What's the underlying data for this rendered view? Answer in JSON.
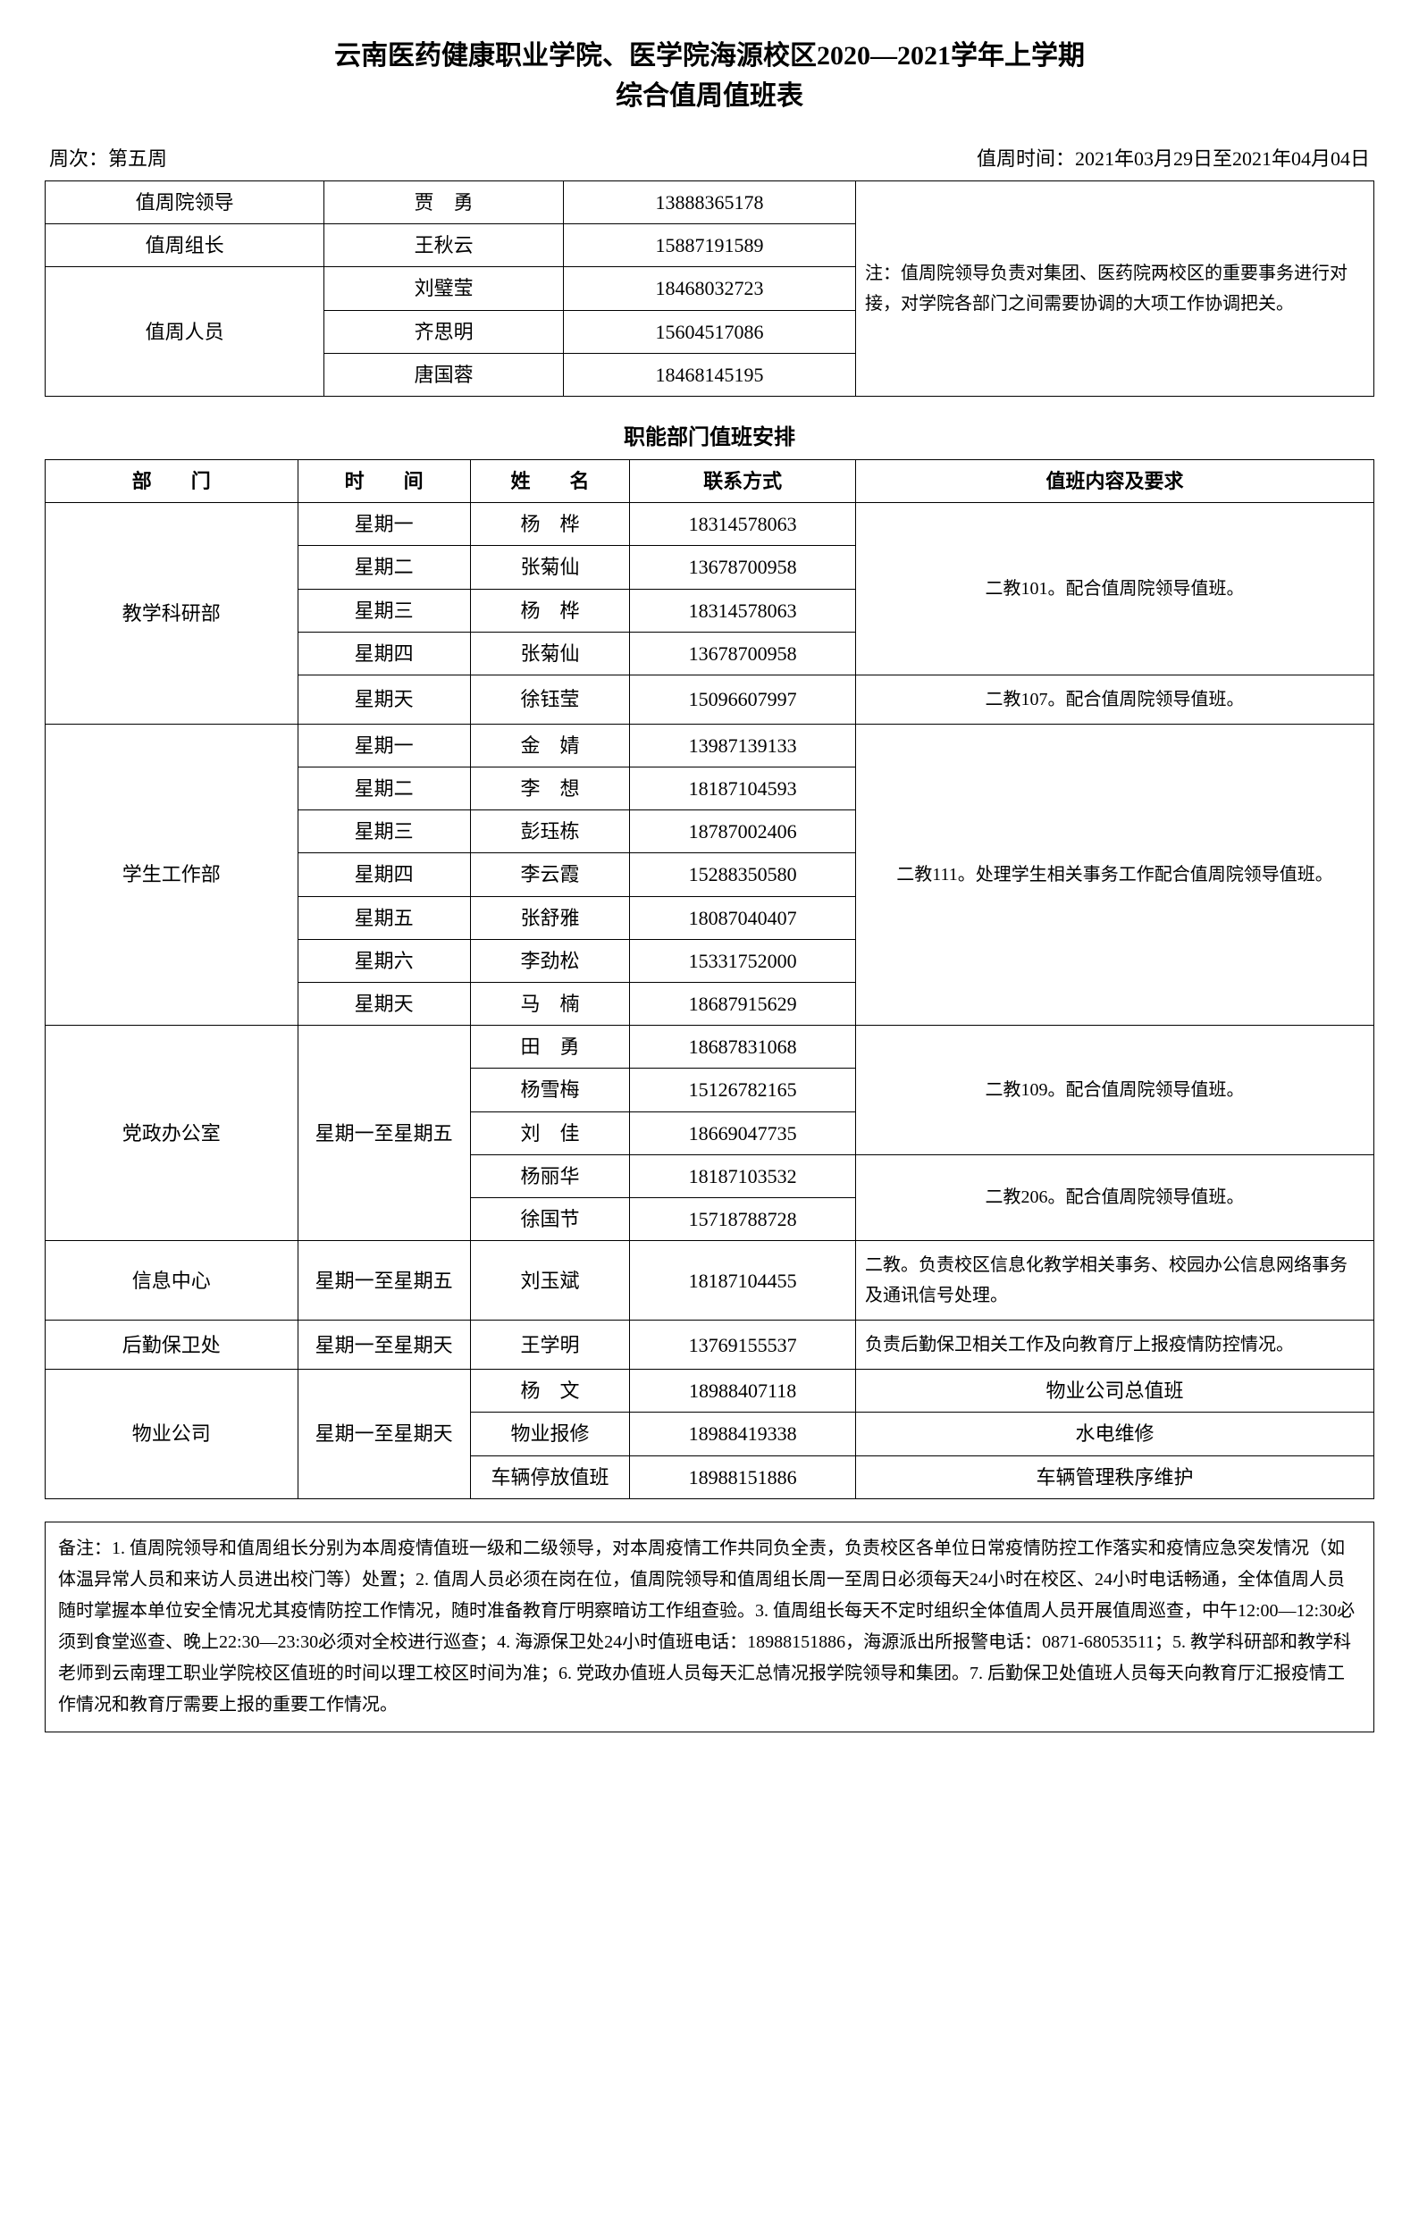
{
  "title_line1": "云南医药健康职业学院、医学院海源校区2020—2021学年上学期",
  "title_line2": "综合值周值班表",
  "week_label": "周次：第五周",
  "period_label": "值周时间：2021年03月29日至2021年04月04日",
  "top_table": {
    "note": "注：值周院领导负责对集团、医药院两校区的重要事务进行对接，对学院各部门之间需要协调的大项工作协调把关。",
    "rows": [
      {
        "role": "值周院领导",
        "name": "贾　勇",
        "phone": "13888365178"
      },
      {
        "role": "值周组长",
        "name": "王秋云",
        "phone": "15887191589"
      },
      {
        "role": "值周人员",
        "name": "刘璧莹",
        "phone": "18468032723"
      },
      {
        "role": "",
        "name": "齐思明",
        "phone": "15604517086"
      },
      {
        "role": "",
        "name": "唐国蓉",
        "phone": "18468145195"
      }
    ]
  },
  "section2_title": "职能部门值班安排",
  "headers": {
    "dept": "部　　门",
    "time": "时　　间",
    "name": "姓　　名",
    "contact": "联系方式",
    "desc": "值班内容及要求"
  },
  "depts": {
    "jxky": {
      "name": "教学科研部",
      "rows": [
        {
          "time": "星期一",
          "name": "杨　桦",
          "phone": "18314578063"
        },
        {
          "time": "星期二",
          "name": "张菊仙",
          "phone": "13678700958"
        },
        {
          "time": "星期三",
          "name": "杨　桦",
          "phone": "18314578063"
        },
        {
          "time": "星期四",
          "name": "张菊仙",
          "phone": "13678700958"
        },
        {
          "time": "星期天",
          "name": "徐钰莹",
          "phone": "15096607997"
        }
      ],
      "desc1": "二教101。配合值周院领导值班。",
      "desc2": "二教107。配合值周院领导值班。"
    },
    "xsgz": {
      "name": "学生工作部",
      "rows": [
        {
          "time": "星期一",
          "name": "金　婧",
          "phone": "13987139133"
        },
        {
          "time": "星期二",
          "name": "李　想",
          "phone": "18187104593"
        },
        {
          "time": "星期三",
          "name": "彭珏栋",
          "phone": "18787002406"
        },
        {
          "time": "星期四",
          "name": "李云霞",
          "phone": "15288350580"
        },
        {
          "time": "星期五",
          "name": "张舒雅",
          "phone": "18087040407"
        },
        {
          "time": "星期六",
          "name": "李劲松",
          "phone": "15331752000"
        },
        {
          "time": "星期天",
          "name": "马　楠",
          "phone": "18687915629"
        }
      ],
      "desc": "二教111。处理学生相关事务工作配合值周院领导值班。"
    },
    "dzbgs": {
      "name": "党政办公室",
      "time": "星期一至星期五",
      "rows": [
        {
          "name": "田　勇",
          "phone": "18687831068"
        },
        {
          "name": "杨雪梅",
          "phone": "15126782165"
        },
        {
          "name": "刘　佳",
          "phone": "18669047735"
        },
        {
          "name": "杨丽华",
          "phone": "18187103532"
        },
        {
          "name": "徐国节",
          "phone": "15718788728"
        }
      ],
      "desc1": "二教109。配合值周院领导值班。",
      "desc2": "二教206。配合值周院领导值班。"
    },
    "xxzx": {
      "name": "信息中心",
      "time": "星期一至星期五",
      "person": "刘玉斌",
      "phone": "18187104455",
      "desc": "二教。负责校区信息化教学相关事务、校园办公信息网络事务及通讯信号处理。"
    },
    "hqbw": {
      "name": "后勤保卫处",
      "time": "星期一至星期天",
      "person": "王学明",
      "phone": "13769155537",
      "desc": "负责后勤保卫相关工作及向教育厅上报疫情防控情况。"
    },
    "wygs": {
      "name": "物业公司",
      "time": "星期一至星期天",
      "rows": [
        {
          "name": "杨　文",
          "phone": "18988407118",
          "desc": "物业公司总值班"
        },
        {
          "name": "物业报修",
          "phone": "18988419338",
          "desc": "水电维修"
        },
        {
          "name": "车辆停放值班",
          "phone": "18988151886",
          "desc": "车辆管理秩序维护"
        }
      ]
    }
  },
  "remarks": "备注：1. 值周院领导和值周组长分别为本周疫情值班一级和二级领导，对本周疫情工作共同负全责，负责校区各单位日常疫情防控工作落实和疫情应急突发情况（如体温异常人员和来访人员进出校门等）处置；2. 值周人员必须在岗在位，值周院领导和值周组长周一至周日必须每天24小时在校区、24小时电话畅通，全体值周人员随时掌握本单位安全情况尤其疫情防控工作情况，随时准备教育厅明察暗访工作组查验。3. 值周组长每天不定时组织全体值周人员开展值周巡查，中午12:00—12:30必须到食堂巡查、晚上22:30—23:30必须对全校进行巡查；4. 海源保卫处24小时值班电话：18988151886，海源派出所报警电话：0871-68053511；5. 教学科研部和教学科老师到云南理工职业学院校区值班的时间以理工校区时间为准；6. 党政办值班人员每天汇总情况报学院领导和集团。7. 后勤保卫处值班人员每天向教育厅汇报疫情工作情况和教育厅需要上报的重要工作情况。"
}
